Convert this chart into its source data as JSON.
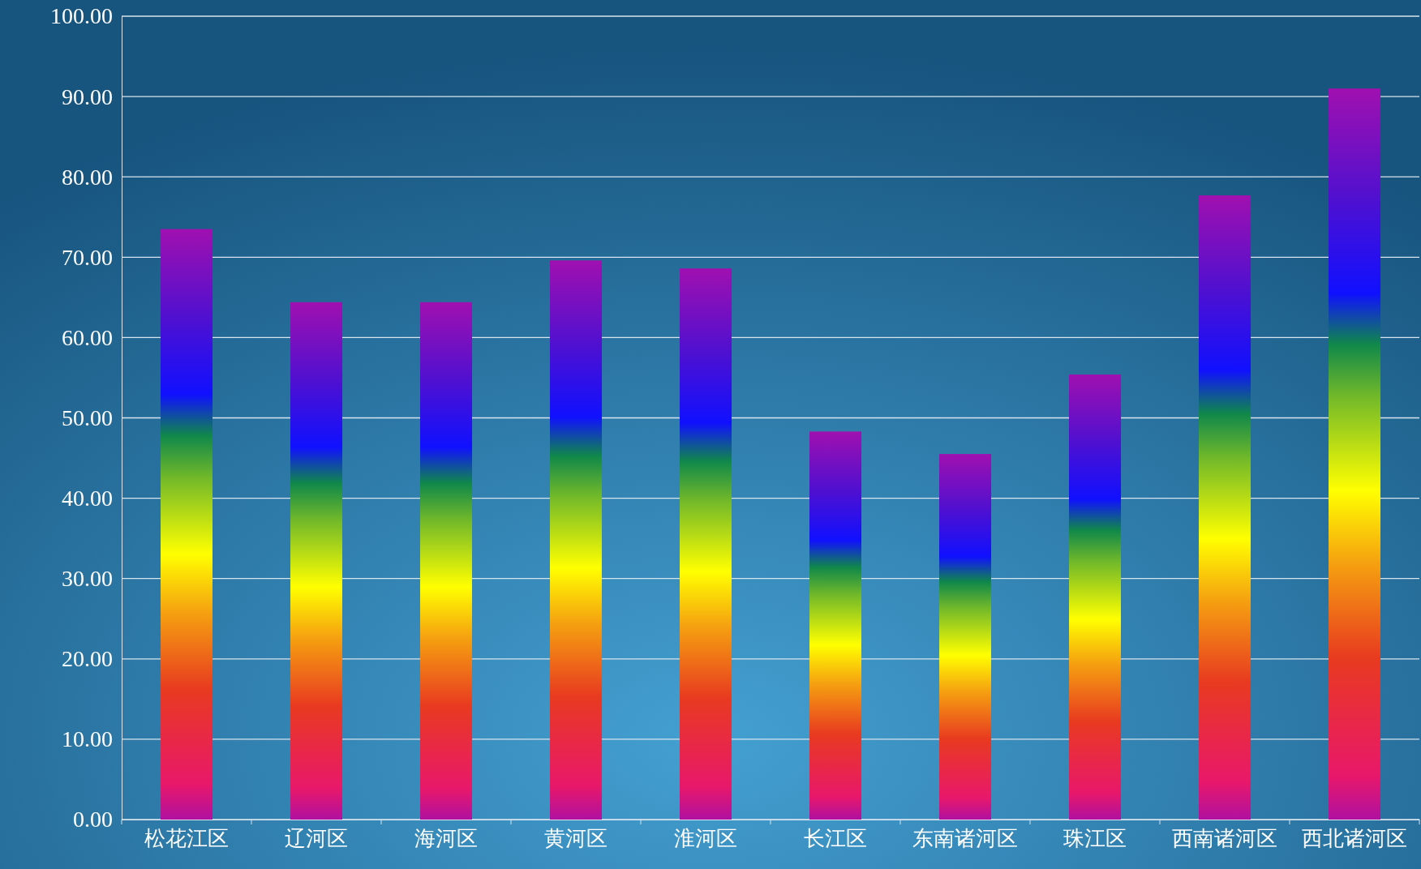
{
  "chart_data": {
    "type": "bar",
    "categories": [
      "松花江区",
      "辽河区",
      "海河区",
      "黄河区",
      "淮河区",
      "长江区",
      "东南诸河区",
      "珠江区",
      "西南诸河区",
      "西北诸河区"
    ],
    "values": [
      73.5,
      64.4,
      64.4,
      69.6,
      68.6,
      48.3,
      45.5,
      55.4,
      77.7,
      91.0
    ],
    "ylim": [
      0,
      100
    ],
    "yticks": [
      {
        "value": 0,
        "label": "0.00"
      },
      {
        "value": 10,
        "label": "10.00"
      },
      {
        "value": 20,
        "label": "20.00"
      },
      {
        "value": 30,
        "label": "30.00"
      },
      {
        "value": 40,
        "label": "40.00"
      },
      {
        "value": 50,
        "label": "50.00"
      },
      {
        "value": 60,
        "label": "60.00"
      },
      {
        "value": 70,
        "label": "70.00"
      },
      {
        "value": 80,
        "label": "80.00"
      },
      {
        "value": 90,
        "label": "90.00"
      },
      {
        "value": 100,
        "label": "100.00"
      }
    ],
    "grid": "y"
  }
}
